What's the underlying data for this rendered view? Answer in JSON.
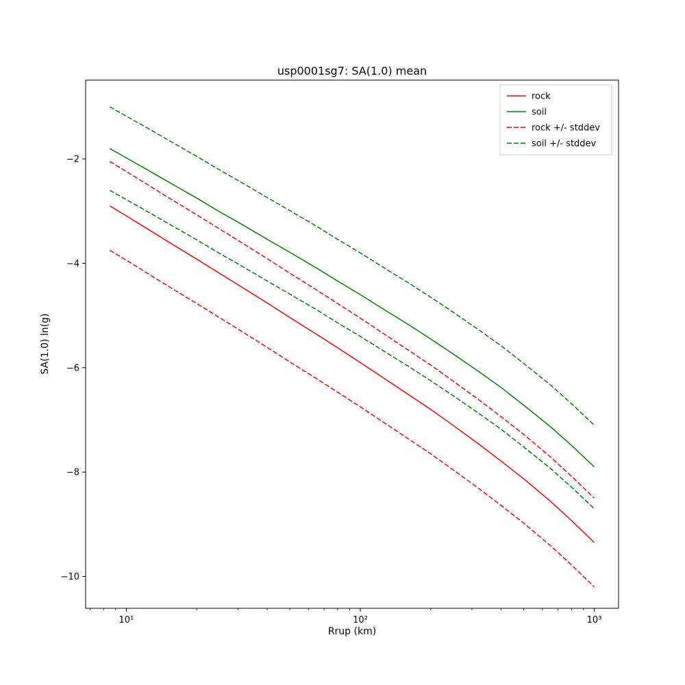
{
  "chart_data": {
    "type": "line",
    "title": "usp0001sg7: SA(1.0) mean",
    "xlabel": "Rrup (km)",
    "ylabel": "SA(1.0) ln(g)",
    "xscale": "log",
    "grid": false,
    "xlim": [
      6.7,
      1270
    ],
    "ylim": [
      -10.61,
      -0.49
    ],
    "x": [
      8.5,
      10,
      12,
      15,
      20,
      25,
      30,
      40,
      50,
      65,
      80,
      100,
      130,
      160,
      200,
      250,
      320,
      400,
      500,
      650,
      800,
      1000
    ],
    "series": [
      {
        "name": "rock-mean",
        "label": "rock",
        "color": "#ff0000",
        "style": "solid",
        "values": [
          -2.9,
          -3.09,
          -3.31,
          -3.58,
          -3.92,
          -4.19,
          -4.41,
          -4.76,
          -5.04,
          -5.36,
          -5.62,
          -5.9,
          -6.24,
          -6.51,
          -6.8,
          -7.11,
          -7.46,
          -7.79,
          -8.13,
          -8.56,
          -8.93,
          -9.35
        ]
      },
      {
        "name": "soil-mean",
        "label": "soil",
        "color": "#008000",
        "style": "solid",
        "values": [
          -1.8,
          -1.98,
          -2.18,
          -2.43,
          -2.75,
          -3.01,
          -3.21,
          -3.54,
          -3.79,
          -4.09,
          -4.34,
          -4.6,
          -4.92,
          -5.17,
          -5.45,
          -5.74,
          -6.07,
          -6.38,
          -6.72,
          -7.13,
          -7.49,
          -7.9
        ]
      },
      {
        "name": "rock-plus-stddev",
        "label": "rock +/- stddev",
        "color": "#ff0000",
        "style": "dashed",
        "values": [
          -2.05,
          -2.24,
          -2.46,
          -2.73,
          -3.07,
          -3.34,
          -3.56,
          -3.91,
          -4.19,
          -4.51,
          -4.77,
          -5.05,
          -5.39,
          -5.66,
          -5.95,
          -6.26,
          -6.61,
          -6.94,
          -7.28,
          -7.71,
          -8.08,
          -8.5
        ]
      },
      {
        "name": "rock-minus-stddev",
        "color": "#ff0000",
        "style": "dashed",
        "values": [
          -3.75,
          -3.94,
          -4.16,
          -4.43,
          -4.77,
          -5.04,
          -5.26,
          -5.61,
          -5.89,
          -6.21,
          -6.47,
          -6.75,
          -7.09,
          -7.36,
          -7.65,
          -7.96,
          -8.31,
          -8.64,
          -8.98,
          -9.41,
          -9.78,
          -10.2
        ]
      },
      {
        "name": "soil-plus-stddev",
        "label": "soil +/- stddev",
        "color": "#008000",
        "style": "dashed",
        "values": [
          -1.0,
          -1.18,
          -1.38,
          -1.63,
          -1.95,
          -2.21,
          -2.41,
          -2.74,
          -2.99,
          -3.29,
          -3.54,
          -3.8,
          -4.12,
          -4.37,
          -4.65,
          -4.94,
          -5.27,
          -5.58,
          -5.92,
          -6.33,
          -6.69,
          -7.1
        ]
      },
      {
        "name": "soil-minus-stddev",
        "color": "#008000",
        "style": "dashed",
        "values": [
          -2.6,
          -2.78,
          -2.98,
          -3.23,
          -3.55,
          -3.81,
          -4.01,
          -4.34,
          -4.59,
          -4.89,
          -5.14,
          -5.4,
          -5.72,
          -5.97,
          -6.25,
          -6.54,
          -6.87,
          -7.18,
          -7.52,
          -7.93,
          -8.29,
          -8.7
        ]
      }
    ],
    "xticks": {
      "values": [
        10,
        100,
        1000
      ],
      "labels": [
        "10¹",
        "10²",
        "10³"
      ]
    },
    "yticks": {
      "values": [
        -2,
        -4,
        -6,
        -8,
        -10
      ],
      "labels": [
        "−2",
        "−4",
        "−6",
        "−8",
        "−10"
      ]
    },
    "legend": {
      "position": "upper right",
      "entries": [
        "rock",
        "soil",
        "rock +/- stddev",
        "soil +/- stddev"
      ]
    }
  }
}
